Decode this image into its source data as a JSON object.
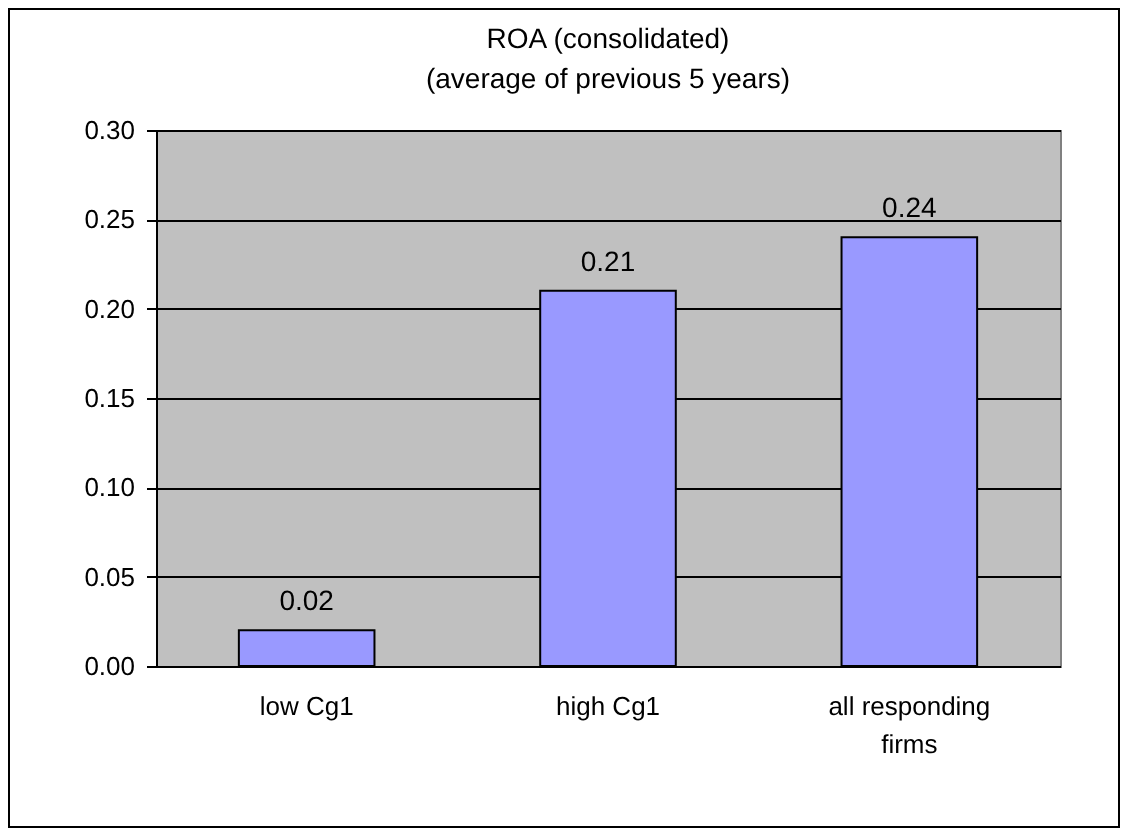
{
  "chart_data": {
    "type": "bar",
    "title": "ROA (consolidated)",
    "subtitle": "(average of previous 5 years)",
    "categories": [
      "low Cg1",
      "high Cg1",
      "all responding firms"
    ],
    "values": [
      0.02,
      0.21,
      0.24
    ],
    "color": "#9999ff",
    "ylim": [
      0,
      0.3
    ],
    "yticks": [
      {
        "value": 0,
        "label": "0.00"
      },
      {
        "value": 0.05,
        "label": "0.05"
      },
      {
        "value": 0.1,
        "label": "0.10"
      },
      {
        "value": 0.15,
        "label": "0.15"
      },
      {
        "value": 0.2,
        "label": "0.20"
      },
      {
        "value": 0.25,
        "label": "0.25"
      },
      {
        "value": 0.3,
        "label": "0.30"
      }
    ],
    "grid": "y",
    "data_labels": true
  }
}
